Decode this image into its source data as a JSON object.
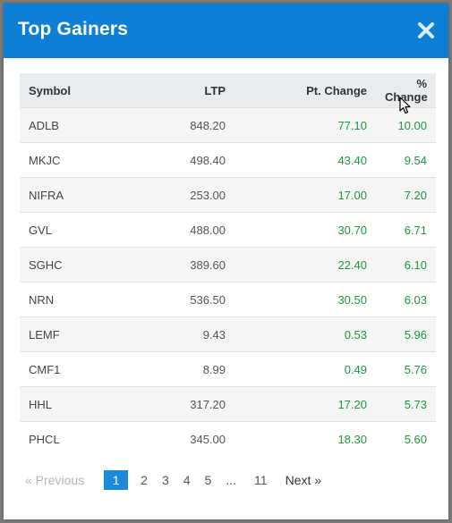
{
  "modal": {
    "title": "Top Gainers",
    "close_icon": "close-x-icon"
  },
  "table": {
    "headers": {
      "symbol": "Symbol",
      "ltp": "LTP",
      "pt_change": "Pt. Change",
      "pct_change": "% Change"
    },
    "rows": [
      {
        "symbol": "ADLB",
        "ltp": "848.20",
        "pt_change": "77.10",
        "pct_change": "10.00"
      },
      {
        "symbol": "MKJC",
        "ltp": "498.40",
        "pt_change": "43.40",
        "pct_change": "9.54"
      },
      {
        "symbol": "NIFRA",
        "ltp": "253.00",
        "pt_change": "17.00",
        "pct_change": "7.20"
      },
      {
        "symbol": "GVL",
        "ltp": "488.00",
        "pt_change": "30.70",
        "pct_change": "6.71"
      },
      {
        "symbol": "SGHC",
        "ltp": "389.60",
        "pt_change": "22.40",
        "pct_change": "6.10"
      },
      {
        "symbol": "NRN",
        "ltp": "536.50",
        "pt_change": "30.50",
        "pct_change": "6.03"
      },
      {
        "symbol": "LEMF",
        "ltp": "9.43",
        "pt_change": "0.53",
        "pct_change": "5.96"
      },
      {
        "symbol": "CMF1",
        "ltp": "8.99",
        "pt_change": "0.49",
        "pct_change": "5.76"
      },
      {
        "symbol": "HHL",
        "ltp": "317.20",
        "pt_change": "17.20",
        "pct_change": "5.73"
      },
      {
        "symbol": "PHCL",
        "ltp": "345.00",
        "pt_change": "18.30",
        "pct_change": "5.60"
      }
    ]
  },
  "pagination": {
    "prev_label": "« Previous",
    "pages": [
      "1",
      "2",
      "3",
      "4",
      "5",
      "...",
      "11"
    ],
    "current_page": "1",
    "next_label": "Next »"
  },
  "colors": {
    "header_bg": "#0e7fd6",
    "gain_green": "#1a9a3a",
    "active_page": "#1a8ad9"
  }
}
